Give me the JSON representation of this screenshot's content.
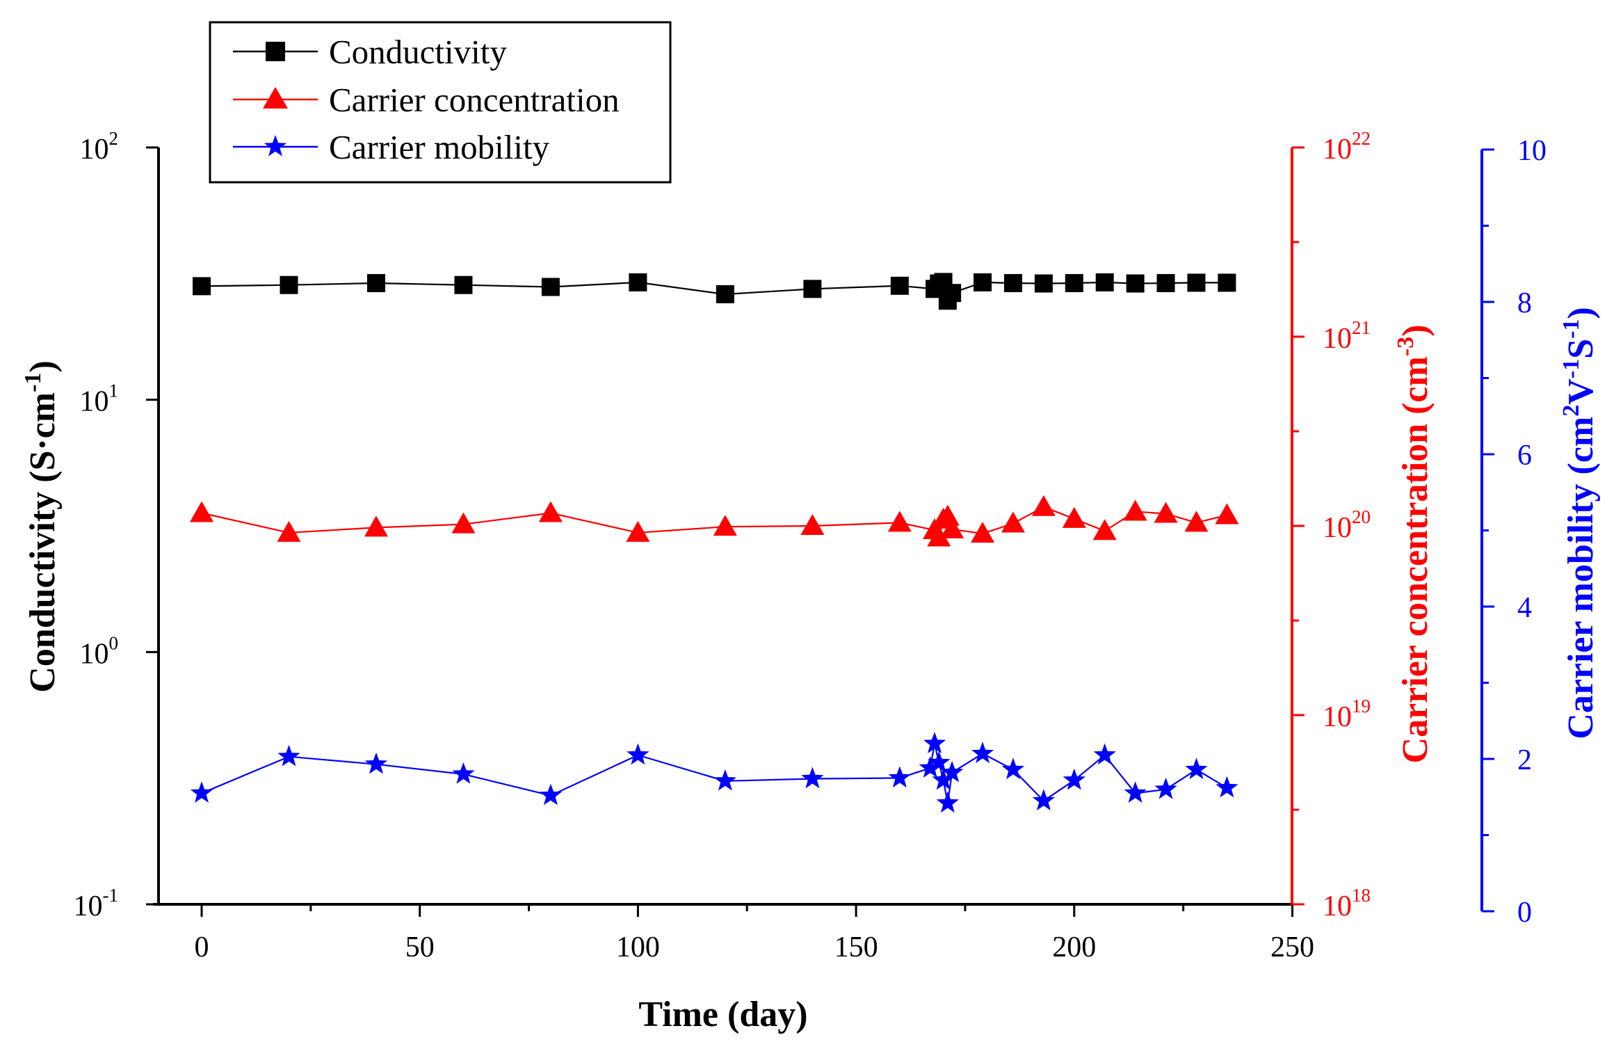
{
  "chart_data": {
    "type": "line",
    "xlabel": "Time (day)",
    "xlim": [
      -10,
      250
    ],
    "xticks": [
      0,
      50,
      100,
      150,
      200,
      250
    ],
    "axes": {
      "left": {
        "label_main": "Conductivity (S·cm",
        "label_sup": "-1",
        "label_close": ")",
        "scale": "log",
        "lim": [
          0.1,
          100
        ],
        "ticks": [
          {
            "base": "10",
            "exp": "-1",
            "value": 0.1
          },
          {
            "base": "10",
            "exp": "0",
            "value": 1
          },
          {
            "base": "10",
            "exp": "1",
            "value": 10
          },
          {
            "base": "10",
            "exp": "2",
            "value": 100
          }
        ],
        "color": "#000000"
      },
      "right1": {
        "label_main": "Carrier concentration (cm",
        "label_sup": "-3",
        "label_close": ")",
        "scale": "log",
        "lim": [
          1e+18,
          1e+22
        ],
        "ticks": [
          {
            "base": "10",
            "exp": "18",
            "value": 1e+18
          },
          {
            "base": "10",
            "exp": "19",
            "value": 1e+19
          },
          {
            "base": "10",
            "exp": "20",
            "value": 1e+20
          },
          {
            "base": "10",
            "exp": "21",
            "value": 1e+21
          },
          {
            "base": "10",
            "exp": "22",
            "value": 1e+22
          }
        ],
        "color": "#ff0000"
      },
      "right2": {
        "label_main": "Carrier mobility (cm",
        "label_sup1": "2",
        "label_mid1": "V",
        "label_sup2": "-1",
        "label_mid2": "S",
        "label_sup3": "-1",
        "label_close": ")",
        "scale": "linear",
        "lim": [
          0,
          10
        ],
        "ticks": [
          "0",
          "2",
          "4",
          "6",
          "8",
          "10"
        ],
        "color": "#0000ff"
      }
    },
    "legend": {
      "position": "top-left",
      "entries": [
        "Conductivity",
        "Carrier concentration",
        "Carrier mobility"
      ]
    },
    "series": [
      {
        "name": "Conductivity",
        "axis": "left",
        "color": "#000000",
        "marker": "square",
        "points": [
          [
            0,
            28.2
          ],
          [
            20,
            28.5
          ],
          [
            40,
            29.0
          ],
          [
            60,
            28.5
          ],
          [
            80,
            28.0
          ],
          [
            100,
            29.2
          ],
          [
            120,
            26.2
          ],
          [
            140,
            27.5
          ],
          [
            160,
            28.3
          ],
          [
            168,
            27.5
          ],
          [
            169,
            28.9
          ],
          [
            170,
            29.3
          ],
          [
            171,
            24.7
          ],
          [
            172,
            26.5
          ],
          [
            179,
            29.2
          ],
          [
            186,
            29.0
          ],
          [
            193,
            28.9
          ],
          [
            200,
            29.0
          ],
          [
            207,
            29.2
          ],
          [
            214,
            28.9
          ],
          [
            221,
            29.0
          ],
          [
            228,
            29.1
          ],
          [
            235,
            29.1
          ]
        ]
      },
      {
        "name": "Carrier concentration",
        "axis": "right1",
        "color": "#ff0000",
        "marker": "triangle",
        "points": [
          [
            0,
            1.17e+20
          ],
          [
            20,
            9.2e+19
          ],
          [
            40,
            9.8e+19
          ],
          [
            60,
            1.02e+20
          ],
          [
            80,
            1.17e+20
          ],
          [
            100,
            9.2e+19
          ],
          [
            120,
            9.9e+19
          ],
          [
            140,
            1e+20
          ],
          [
            160,
            1.04e+20
          ],
          [
            168,
            9.5e+19
          ],
          [
            169,
            8.7e+19
          ],
          [
            170,
            1.08e+20
          ],
          [
            171,
            1.12e+20
          ],
          [
            172,
            9.6e+19
          ],
          [
            179,
            9.1e+19
          ],
          [
            186,
            1.03e+20
          ],
          [
            193,
            1.26e+20
          ],
          [
            200,
            1.09e+20
          ],
          [
            207,
            9.4e+19
          ],
          [
            214,
            1.19e+20
          ],
          [
            221,
            1.16e+20
          ],
          [
            228,
            1.04e+20
          ],
          [
            235,
            1.14e+20
          ]
        ]
      },
      {
        "name": "Carrier mobility",
        "axis": "right2",
        "color": "#0000ff",
        "marker": "star",
        "points": [
          [
            0,
            1.55
          ],
          [
            20,
            2.03
          ],
          [
            40,
            1.93
          ],
          [
            60,
            1.8
          ],
          [
            80,
            1.52
          ],
          [
            100,
            2.05
          ],
          [
            120,
            1.71
          ],
          [
            140,
            1.74
          ],
          [
            160,
            1.75
          ],
          [
            167,
            1.88
          ],
          [
            168,
            2.2
          ],
          [
            169,
            1.95
          ],
          [
            170,
            1.72
          ],
          [
            171,
            1.42
          ],
          [
            172,
            1.82
          ],
          [
            179,
            2.07
          ],
          [
            186,
            1.86
          ],
          [
            193,
            1.45
          ],
          [
            200,
            1.72
          ],
          [
            207,
            2.05
          ],
          [
            214,
            1.55
          ],
          [
            221,
            1.6
          ],
          [
            228,
            1.86
          ],
          [
            235,
            1.62
          ]
        ]
      }
    ]
  }
}
